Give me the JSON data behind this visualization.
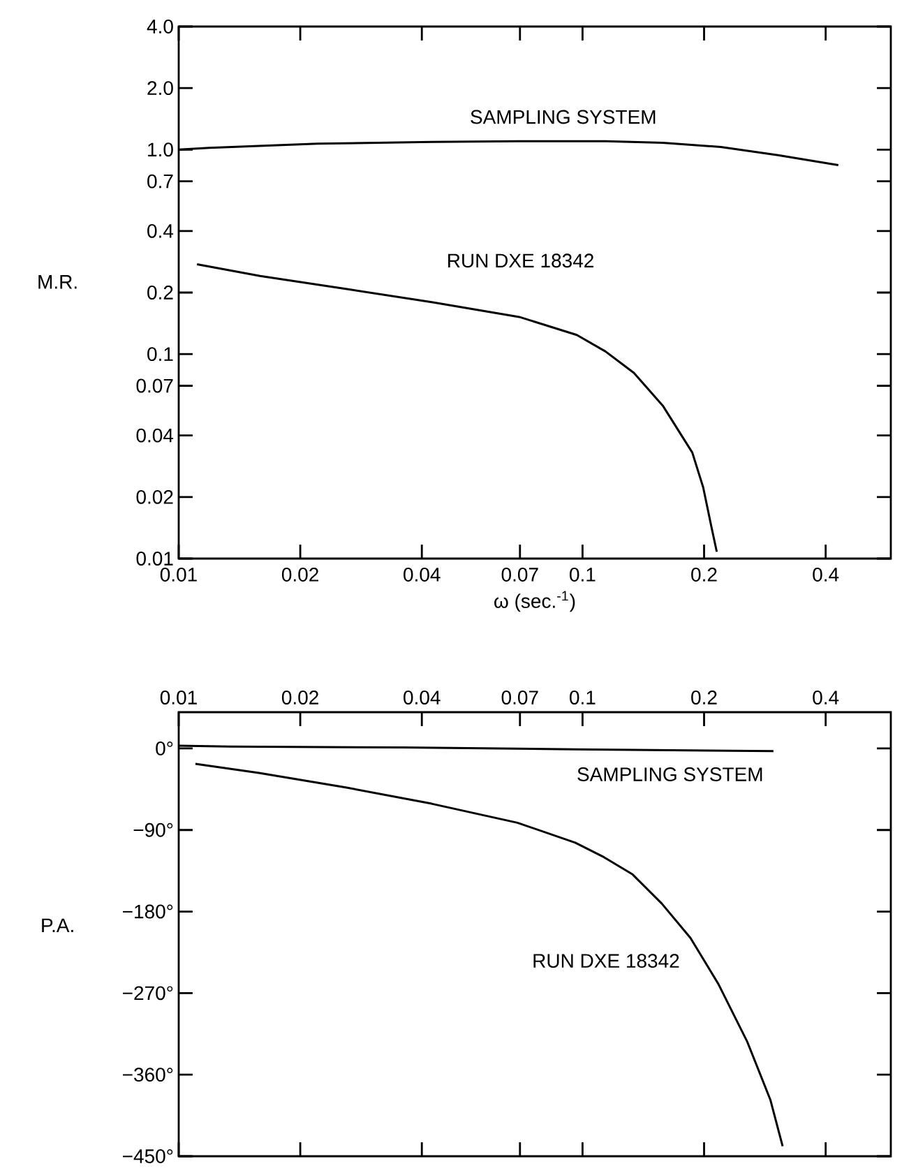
{
  "chart_data": [
    {
      "type": "line",
      "xlabel": "ω (sec.$^{-1}$)",
      "ylabel": "M.R.",
      "log": "xy",
      "grid": false,
      "legend": false,
      "xlim": [
        0.01,
        0.58
      ],
      "ylim": [
        0.01,
        4
      ],
      "xticks": [
        0.01,
        0.02,
        0.04,
        0.07,
        0.1,
        0.2,
        0.4
      ],
      "yticks": [
        0.01,
        0.02,
        0.04,
        0.07,
        0.1,
        0.2,
        0.4,
        0.7,
        {
          "value": 1,
          "label": "1.0"
        },
        {
          "value": 2,
          "label": "2.0"
        },
        {
          "value": 4,
          "label": "4.0"
        }
      ],
      "series": [
        {
          "name": "SAMPLING SYSTEM",
          "color": "#000000",
          "x": [
            0.01,
            0.0119,
            0.0221,
            0.0426,
            0.0697,
            0.114,
            0.158,
            0.22,
            0.305,
            0.43
          ],
          "values": [
            1.0,
            1.02,
            1.07,
            1.09,
            1.1,
            1.1,
            1.08,
            1.03,
            0.94,
            0.84
          ]
        },
        {
          "name": "RUN DXE 18342",
          "color": "#000000",
          "x": [
            0.0111,
            0.0159,
            0.0261,
            0.0426,
            0.0697,
            0.0968,
            0.114,
            0.134,
            0.158,
            0.187,
            0.199,
            0.209,
            0.215
          ],
          "values": [
            0.275,
            0.241,
            0.208,
            0.179,
            0.152,
            0.124,
            0.103,
            0.081,
            0.056,
            0.033,
            0.0223,
            0.014,
            0.0108
          ]
        }
      ]
    },
    {
      "type": "line",
      "ylabel": "P.A.",
      "log": "x",
      "grid": false,
      "legend": false,
      "xlim": [
        0.01,
        0.58
      ],
      "ylim": [
        -450,
        40
      ],
      "xticks": [
        0.01,
        0.02,
        0.04,
        0.07,
        0.1,
        0.2,
        0.4
      ],
      "yticks": [
        {
          "value": -450,
          "label": "−450°"
        },
        {
          "value": -360,
          "label": "−360°"
        },
        {
          "value": -270,
          "label": "−270°"
        },
        {
          "value": -180,
          "label": "−180°"
        },
        {
          "value": -90,
          "label": "−90°"
        },
        {
          "value": 0,
          "label": "0°"
        }
      ],
      "series": [
        {
          "name": "SAMPLING SYSTEM",
          "color": "#000000",
          "x": [
            0.01,
            0.0134,
            0.0359,
            0.0962,
            0.297
          ],
          "values": [
            3,
            2,
            1,
            -1,
            -3
          ]
        },
        {
          "name": "RUN DXE 18342",
          "color": "#000000",
          "x": [
            0.011,
            0.0158,
            0.0259,
            0.0423,
            0.069,
            0.0959,
            0.113,
            0.133,
            0.157,
            0.185,
            0.217,
            0.256,
            0.292,
            0.313
          ],
          "values": [
            -17,
            -27,
            -43,
            -61,
            -82,
            -104,
            -120,
            -139,
            -171,
            -209,
            -260,
            -324,
            -388,
            -439
          ]
        }
      ]
    }
  ]
}
